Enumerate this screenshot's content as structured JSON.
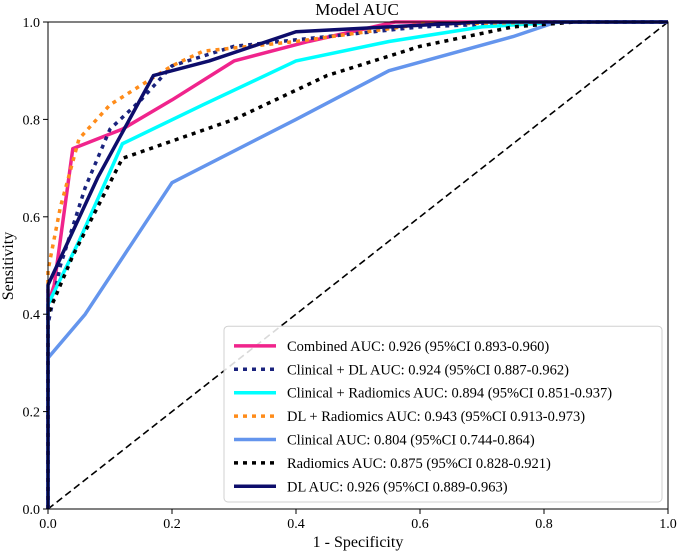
{
  "chart_data": {
    "type": "line",
    "title": "Model AUC",
    "xlabel": "1 - Specificity",
    "ylabel": "Sensitivity",
    "xlim": [
      0,
      1
    ],
    "ylim": [
      0,
      1
    ],
    "xticks": [
      "0.0",
      "0.2",
      "0.4",
      "0.6",
      "0.8",
      "1.0"
    ],
    "yticks": [
      "0.0",
      "0.2",
      "0.4",
      "0.6",
      "0.8",
      "1.0"
    ],
    "grid": false,
    "legend_position": "bottom-right",
    "diagonal": {
      "color": "#000000",
      "style": "dashed",
      "points": [
        [
          0,
          0
        ],
        [
          1,
          1
        ]
      ]
    },
    "series": [
      {
        "name": "Combined AUC: 0.926 (95%CI 0.893-0.960)",
        "color": "#f0248c",
        "style": "solid",
        "points": [
          [
            0,
            0
          ],
          [
            0,
            0.42
          ],
          [
            0.01,
            0.46
          ],
          [
            0.04,
            0.74
          ],
          [
            0.12,
            0.78
          ],
          [
            0.2,
            0.84
          ],
          [
            0.3,
            0.92
          ],
          [
            0.42,
            0.96
          ],
          [
            0.56,
            1.0
          ],
          [
            1.0,
            1.0
          ]
        ]
      },
      {
        "name": "Clinical + DL AUC: 0.924 (95%CI 0.887-0.962)",
        "color": "#1a237e",
        "style": "dotted",
        "points": [
          [
            0,
            0
          ],
          [
            0,
            0.38
          ],
          [
            0.02,
            0.5
          ],
          [
            0.06,
            0.66
          ],
          [
            0.1,
            0.78
          ],
          [
            0.15,
            0.84
          ],
          [
            0.2,
            0.91
          ],
          [
            0.3,
            0.95
          ],
          [
            0.45,
            0.97
          ],
          [
            0.6,
            0.99
          ],
          [
            0.8,
            1.0
          ],
          [
            1.0,
            1.0
          ]
        ]
      },
      {
        "name": "Clinical + Radiomics AUC: 0.894 (95%CI 0.851-0.937)",
        "color": "#00ffff",
        "style": "solid",
        "points": [
          [
            0,
            0
          ],
          [
            0,
            0.42
          ],
          [
            0.05,
            0.55
          ],
          [
            0.12,
            0.75
          ],
          [
            0.25,
            0.83
          ],
          [
            0.4,
            0.92
          ],
          [
            0.55,
            0.96
          ],
          [
            0.7,
            0.99
          ],
          [
            0.83,
            1.0
          ],
          [
            1.0,
            1.0
          ]
        ]
      },
      {
        "name": "DL + Radiomics AUC: 0.943 (95%CI 0.913-0.973)",
        "color": "#ff8c1a",
        "style": "dotted",
        "points": [
          [
            0,
            0
          ],
          [
            0,
            0.49
          ],
          [
            0.02,
            0.62
          ],
          [
            0.05,
            0.76
          ],
          [
            0.1,
            0.83
          ],
          [
            0.2,
            0.91
          ],
          [
            0.25,
            0.94
          ],
          [
            0.4,
            0.96
          ],
          [
            0.6,
            0.995
          ],
          [
            0.8,
            1.0
          ],
          [
            1.0,
            1.0
          ]
        ]
      },
      {
        "name": "Clinical AUC: 0.804 (95%CI 0.744-0.864)",
        "color": "#6495ed",
        "style": "solid",
        "points": [
          [
            0,
            0
          ],
          [
            0,
            0.31
          ],
          [
            0.06,
            0.4
          ],
          [
            0.2,
            0.67
          ],
          [
            0.4,
            0.8
          ],
          [
            0.55,
            0.9
          ],
          [
            0.75,
            0.97
          ],
          [
            0.82,
            1.0
          ],
          [
            1.0,
            1.0
          ]
        ]
      },
      {
        "name": "Radiomics AUC: 0.875 (95%CI 0.828-0.921)",
        "color": "#000000",
        "style": "dotted",
        "points": [
          [
            0,
            0
          ],
          [
            0,
            0.4
          ],
          [
            0.04,
            0.52
          ],
          [
            0.12,
            0.72
          ],
          [
            0.3,
            0.8
          ],
          [
            0.45,
            0.89
          ],
          [
            0.6,
            0.95
          ],
          [
            0.75,
            0.99
          ],
          [
            0.85,
            1.0
          ],
          [
            1.0,
            1.0
          ]
        ]
      },
      {
        "name": "DL AUC: 0.926 (95%CI 0.889-0.963)",
        "color": "#0d0d6b",
        "style": "solid",
        "points": [
          [
            0,
            0
          ],
          [
            0,
            0.46
          ],
          [
            0.08,
            0.68
          ],
          [
            0.17,
            0.89
          ],
          [
            0.26,
            0.92
          ],
          [
            0.4,
            0.98
          ],
          [
            0.55,
            0.99
          ],
          [
            0.7,
            1.0
          ],
          [
            1.0,
            1.0
          ]
        ]
      }
    ]
  }
}
